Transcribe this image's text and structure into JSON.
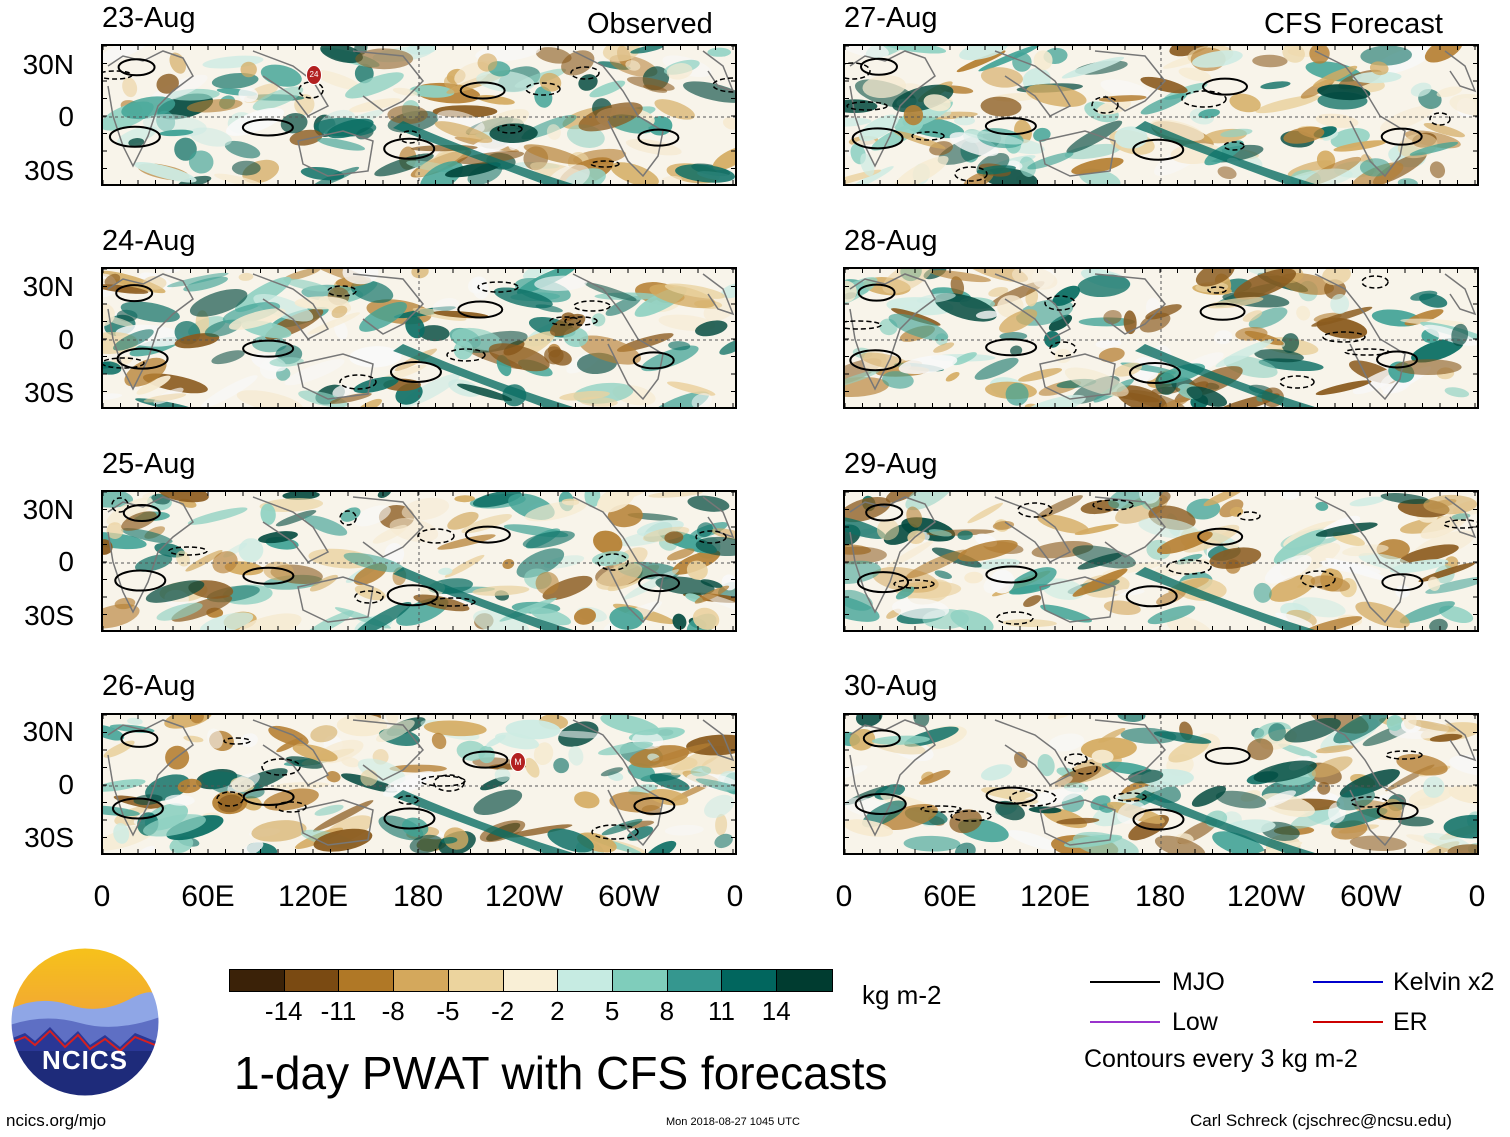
{
  "header": {
    "left": "Observed",
    "right": "CFS Forecast"
  },
  "observed_dates": [
    "23-Aug",
    "24-Aug",
    "25-Aug",
    "26-Aug"
  ],
  "forecast_dates": [
    "27-Aug",
    "28-Aug",
    "29-Aug",
    "30-Aug"
  ],
  "lat_labels": [
    "30N",
    "0",
    "30S"
  ],
  "lon_labels": [
    "0",
    "60E",
    "120E",
    "180",
    "120W",
    "60W",
    "0"
  ],
  "markers": {
    "storm_23": "24",
    "storm_26": "M"
  },
  "colorbar": {
    "labels": [
      "-14",
      "-11",
      "-8",
      "-5",
      "-2",
      "2",
      "5",
      "8",
      "11",
      "14"
    ],
    "colors": [
      "#3b2208",
      "#7a4a12",
      "#b07826",
      "#d4a85c",
      "#ecd49e",
      "#f9efd6",
      "#f7f7f7",
      "#c6ebe2",
      "#7fcdbb",
      "#35978f",
      "#01665e",
      "#003c30"
    ],
    "units": "kg m-2"
  },
  "legend": {
    "mjo": "MJO",
    "kelvin": "Kelvin x2",
    "low": "Low",
    "er": "ER",
    "mjo_color": "#000000",
    "kelvin_color": "#0000cc",
    "low_color": "#9933cc",
    "er_color": "#cc0000",
    "contours_note": "Contours every 3 kg m-2"
  },
  "logo": {
    "text": "NCICS"
  },
  "title": "1-day PWAT with CFS forecasts",
  "footer": {
    "left": "ncics.org/mjo",
    "center": "Mon 2018-08-27 1045 UTC",
    "right": "Carl Schreck (cjschrec@ncsu.edu)"
  }
}
